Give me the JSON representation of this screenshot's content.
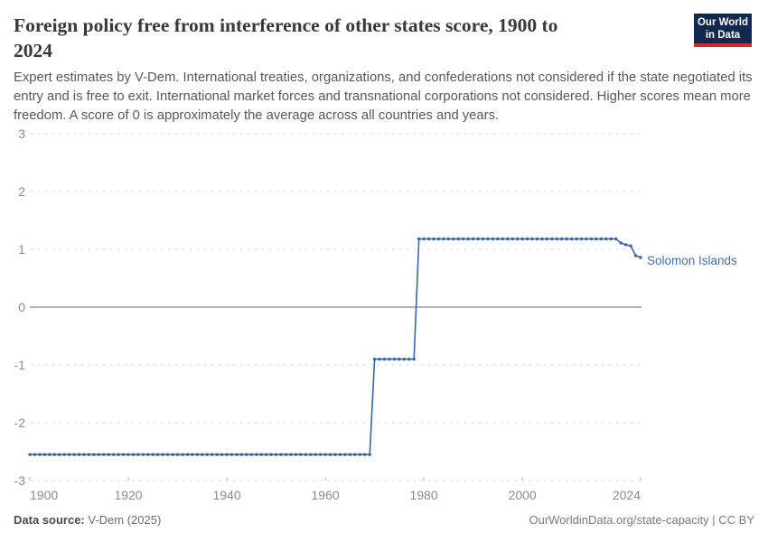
{
  "header": {
    "title_line1": "Foreign policy free from interference of other states score, 1900 to",
    "title_line2": "2024",
    "subtitle": "Expert estimates by V-Dem. International treaties, organizations, and confederations not considered if the state negotiated its entry and is free to exit. International market forces and transnational corporations not considered. Higher scores mean more freedom. A score of 0 is approximately the average across all countries and years.",
    "logo": {
      "line1": "Our World",
      "line2": "in Data",
      "bg_color": "#12294e",
      "accent_color": "#cf2b36"
    }
  },
  "chart_data": {
    "type": "line",
    "title": "Foreign policy free from interference of other states score, 1900 to 2024",
    "xlabel": "",
    "ylabel": "",
    "xlim": [
      1900,
      2024
    ],
    "ylim": [
      -3,
      3
    ],
    "x_ticks": [
      1900,
      1920,
      1940,
      1960,
      1980,
      2000,
      2024
    ],
    "y_ticks": [
      -3,
      -2,
      -1,
      0,
      1,
      2,
      3
    ],
    "grid": "horizontal dashed gridlines, solid line at y=0",
    "legend_position": "label at end of line",
    "marker": "circle on every yearly point",
    "series": [
      {
        "name": "Solomon Islands",
        "color": "#3d64a3",
        "label_color": "#4970ab",
        "segments": [
          {
            "from": 1900,
            "to": 1969,
            "value": -2.55
          },
          {
            "from": 1970,
            "to": 1978,
            "value": -0.9
          },
          {
            "from": 1979,
            "to": 2019,
            "value": 1.18
          },
          {
            "from": 2020,
            "to": 2020,
            "value": 1.11
          },
          {
            "from": 2021,
            "to": 2021,
            "value": 1.08
          },
          {
            "from": 2022,
            "to": 2022,
            "value": 1.06
          },
          {
            "from": 2023,
            "to": 2023,
            "value": 0.89
          },
          {
            "from": 2024,
            "to": 2024,
            "value": 0.86
          }
        ]
      }
    ]
  },
  "footer": {
    "source_label": "Data source:",
    "source_value": "V-Dem (2025)",
    "license": "OurWorldinData.org/state-capacity | CC BY"
  }
}
